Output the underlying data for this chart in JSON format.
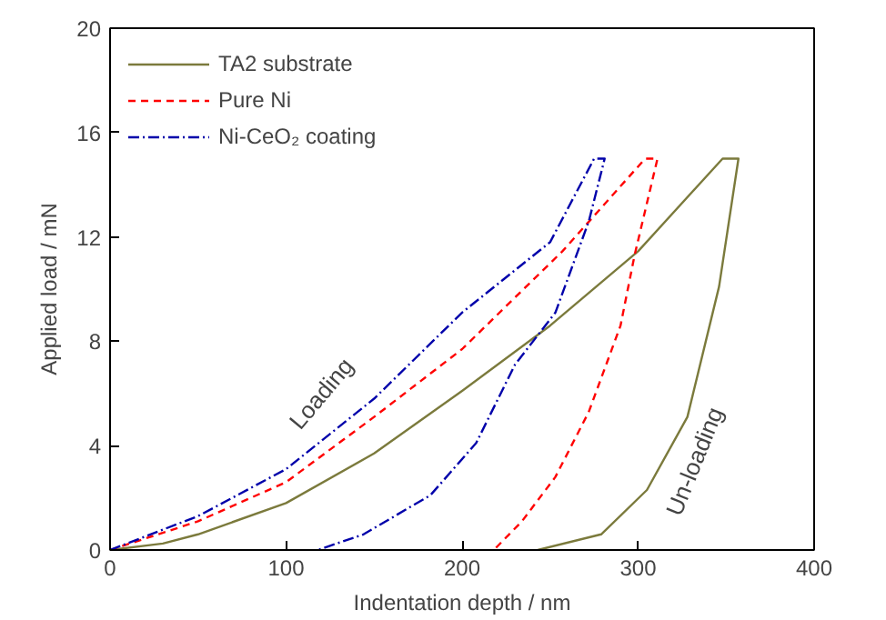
{
  "chart_data": {
    "type": "line",
    "xlabel": "Indentation depth / nm",
    "ylabel": "Applied load / mN",
    "xlim": [
      0,
      400
    ],
    "ylim": [
      0,
      20
    ],
    "xticks": [
      0,
      100,
      200,
      300,
      400
    ],
    "yticks": [
      0,
      4,
      8,
      12,
      16,
      20
    ],
    "grid": false,
    "legend": "top left",
    "marker": "none",
    "series": [
      {
        "name": "TA2 substrate",
        "color": "#7b7a3c",
        "line_style": "solid",
        "x": [
          0,
          30,
          50,
          100,
          150,
          200,
          250,
          300,
          348,
          357,
          346,
          328,
          305,
          279,
          243
        ],
        "values": [
          0,
          0.25,
          0.6,
          1.8,
          3.7,
          6.1,
          8.6,
          11.45,
          15,
          15,
          10.1,
          5.1,
          2.3,
          0.6,
          0
        ]
      },
      {
        "name": "Pure Ni",
        "color": "#ff0000",
        "line_style": "dashed",
        "x": [
          0,
          50,
          100,
          150,
          200,
          257,
          304,
          311,
          298,
          290,
          272,
          253,
          234,
          218
        ],
        "values": [
          0,
          1.1,
          2.6,
          5.1,
          7.7,
          11.45,
          15,
          15,
          11.3,
          8.6,
          5.3,
          2.8,
          1.1,
          0
        ]
      },
      {
        "name": "Ni-CeO₂ coating",
        "color": "#0000aa",
        "line_style": "dashdot",
        "x": [
          0,
          50,
          100,
          150,
          200,
          250,
          275,
          281,
          272,
          253,
          230,
          208,
          182,
          144,
          118
        ],
        "values": [
          0,
          1.3,
          3.1,
          5.8,
          9.1,
          11.8,
          15,
          15,
          12.6,
          9.1,
          7.1,
          4.1,
          2.1,
          0.6,
          0
        ]
      }
    ],
    "annotations": [
      "Loading",
      "Un-loading"
    ]
  }
}
